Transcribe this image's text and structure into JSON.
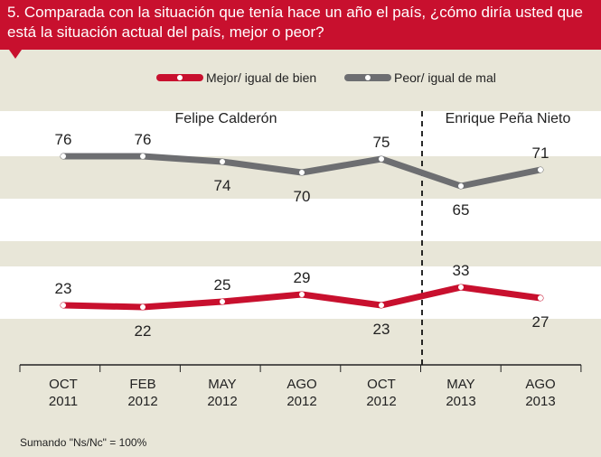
{
  "title": "5. Comparada con la situación que tenía hace un año el país, ¿cómo diría usted  que está la situación actual del país, mejor o peor?",
  "note": "Sumando \"Ns/Nc\" = 100%",
  "colors": {
    "header": "#c8102e",
    "mejor": "#c8102e",
    "peor": "#6d6e71",
    "band_light": "#ffffff",
    "band_dark": "#e8e6d8"
  },
  "chart_data": {
    "type": "line",
    "categories": [
      [
        "OCT",
        "2011"
      ],
      [
        "FEB",
        "2012"
      ],
      [
        "MAY",
        "2012"
      ],
      [
        "AGO",
        "2012"
      ],
      [
        "OCT",
        "2012"
      ],
      [
        "MAY",
        "2013"
      ],
      [
        "AGO",
        "2013"
      ]
    ],
    "series": [
      {
        "name": "Peor/ igual de mal",
        "values": [
          76,
          76,
          74,
          70,
          75,
          65,
          71
        ]
      },
      {
        "name": "Mejor/ igual de bien",
        "values": [
          23,
          22,
          25,
          29,
          23,
          33,
          27
        ]
      }
    ],
    "periods": [
      "Felipe Calderón",
      "Enrique Peña Nieto"
    ],
    "divider_after_index": 4,
    "legend_position": "top",
    "grid": false
  }
}
